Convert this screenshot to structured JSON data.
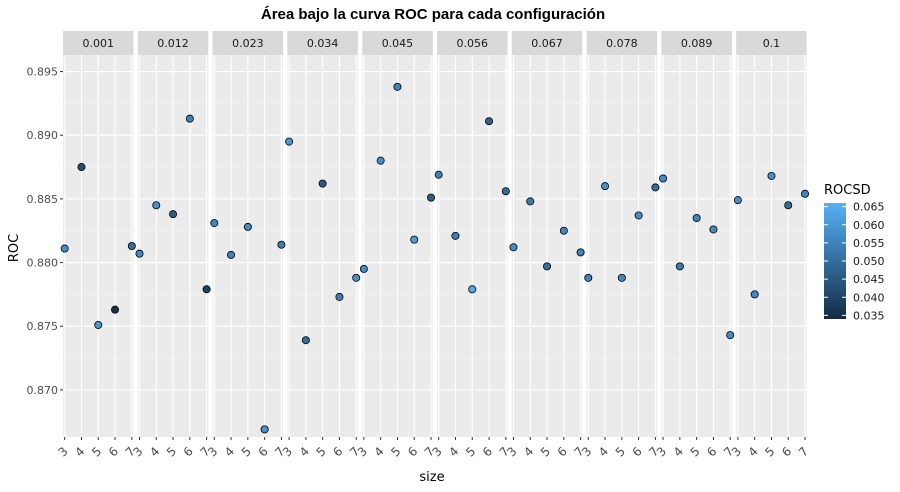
{
  "chart_data": {
    "type": "scatter",
    "title": "Área bajo la curva ROC para cada configuración",
    "xlabel": "size",
    "ylabel": "ROC",
    "facet_labels": [
      "0.001",
      "0.012",
      "0.023",
      "0.034",
      "0.045",
      "0.056",
      "0.067",
      "0.078",
      "0.089",
      "0.1"
    ],
    "x_ticks": [
      "3",
      "4",
      "5",
      "6",
      "7"
    ],
    "y_ticks": [
      "0.870",
      "0.875",
      "0.880",
      "0.885",
      "0.890",
      "0.895"
    ],
    "ylim": [
      0.8663,
      0.8963
    ],
    "xlim": [
      2.9,
      7.1
    ],
    "color_legend": {
      "title": "ROCSD",
      "ticks": [
        "0.035",
        "0.040",
        "0.045",
        "0.050",
        "0.055",
        "0.060",
        "0.065"
      ],
      "range": [
        0.034,
        0.066
      ],
      "low_color": "#132B43",
      "high_color": "#56B1F7"
    },
    "facets": [
      {
        "label": "0.001",
        "points": [
          {
            "x": 3,
            "y": 0.8811,
            "sd": 0.058
          },
          {
            "x": 4,
            "y": 0.8875,
            "sd": 0.042
          },
          {
            "x": 5,
            "y": 0.8751,
            "sd": 0.06
          },
          {
            "x": 6,
            "y": 0.8763,
            "sd": 0.036
          },
          {
            "x": 7,
            "y": 0.8813,
            "sd": 0.05
          }
        ]
      },
      {
        "label": "0.012",
        "points": [
          {
            "x": 3,
            "y": 0.8807,
            "sd": 0.057
          },
          {
            "x": 4,
            "y": 0.8845,
            "sd": 0.058
          },
          {
            "x": 5,
            "y": 0.8838,
            "sd": 0.046
          },
          {
            "x": 6,
            "y": 0.8913,
            "sd": 0.055
          },
          {
            "x": 7,
            "y": 0.8779,
            "sd": 0.04
          }
        ]
      },
      {
        "label": "0.023",
        "points": [
          {
            "x": 3,
            "y": 0.8831,
            "sd": 0.056
          },
          {
            "x": 4,
            "y": 0.8806,
            "sd": 0.055
          },
          {
            "x": 5,
            "y": 0.8828,
            "sd": 0.057
          },
          {
            "x": 6,
            "y": 0.8669,
            "sd": 0.059
          },
          {
            "x": 7,
            "y": 0.8814,
            "sd": 0.053
          }
        ]
      },
      {
        "label": "0.034",
        "points": [
          {
            "x": 3,
            "y": 0.8895,
            "sd": 0.06
          },
          {
            "x": 4,
            "y": 0.8739,
            "sd": 0.05
          },
          {
            "x": 5,
            "y": 0.8862,
            "sd": 0.045
          },
          {
            "x": 6,
            "y": 0.8773,
            "sd": 0.054
          },
          {
            "x": 7,
            "y": 0.8788,
            "sd": 0.058
          }
        ]
      },
      {
        "label": "0.045",
        "points": [
          {
            "x": 3,
            "y": 0.8795,
            "sd": 0.057
          },
          {
            "x": 4,
            "y": 0.888,
            "sd": 0.058
          },
          {
            "x": 5,
            "y": 0.8938,
            "sd": 0.055
          },
          {
            "x": 6,
            "y": 0.8818,
            "sd": 0.061
          },
          {
            "x": 7,
            "y": 0.8851,
            "sd": 0.047
          }
        ]
      },
      {
        "label": "0.056",
        "points": [
          {
            "x": 3,
            "y": 0.8869,
            "sd": 0.055
          },
          {
            "x": 4,
            "y": 0.8821,
            "sd": 0.054
          },
          {
            "x": 5,
            "y": 0.8779,
            "sd": 0.064
          },
          {
            "x": 6,
            "y": 0.8911,
            "sd": 0.047
          },
          {
            "x": 7,
            "y": 0.8856,
            "sd": 0.05
          }
        ]
      },
      {
        "label": "0.067",
        "points": [
          {
            "x": 3,
            "y": 0.8812,
            "sd": 0.058
          },
          {
            "x": 4,
            "y": 0.8848,
            "sd": 0.053
          },
          {
            "x": 5,
            "y": 0.8797,
            "sd": 0.051
          },
          {
            "x": 6,
            "y": 0.8825,
            "sd": 0.056
          },
          {
            "x": 7,
            "y": 0.8808,
            "sd": 0.055
          }
        ]
      },
      {
        "label": "0.078",
        "points": [
          {
            "x": 3,
            "y": 0.8788,
            "sd": 0.056
          },
          {
            "x": 4,
            "y": 0.886,
            "sd": 0.058
          },
          {
            "x": 5,
            "y": 0.8788,
            "sd": 0.057
          },
          {
            "x": 6,
            "y": 0.8837,
            "sd": 0.058
          },
          {
            "x": 7,
            "y": 0.8859,
            "sd": 0.05
          }
        ]
      },
      {
        "label": "0.089",
        "points": [
          {
            "x": 3,
            "y": 0.8866,
            "sd": 0.057
          },
          {
            "x": 4,
            "y": 0.8797,
            "sd": 0.053
          },
          {
            "x": 5,
            "y": 0.8835,
            "sd": 0.056
          },
          {
            "x": 6,
            "y": 0.8826,
            "sd": 0.057
          },
          {
            "x": 7,
            "y": 0.8743,
            "sd": 0.058
          }
        ]
      },
      {
        "label": "0.1",
        "points": [
          {
            "x": 3,
            "y": 0.8849,
            "sd": 0.058
          },
          {
            "x": 4,
            "y": 0.8775,
            "sd": 0.057
          },
          {
            "x": 5,
            "y": 0.8868,
            "sd": 0.058
          },
          {
            "x": 6,
            "y": 0.8845,
            "sd": 0.05
          },
          {
            "x": 7,
            "y": 0.8854,
            "sd": 0.056
          }
        ]
      }
    ]
  }
}
